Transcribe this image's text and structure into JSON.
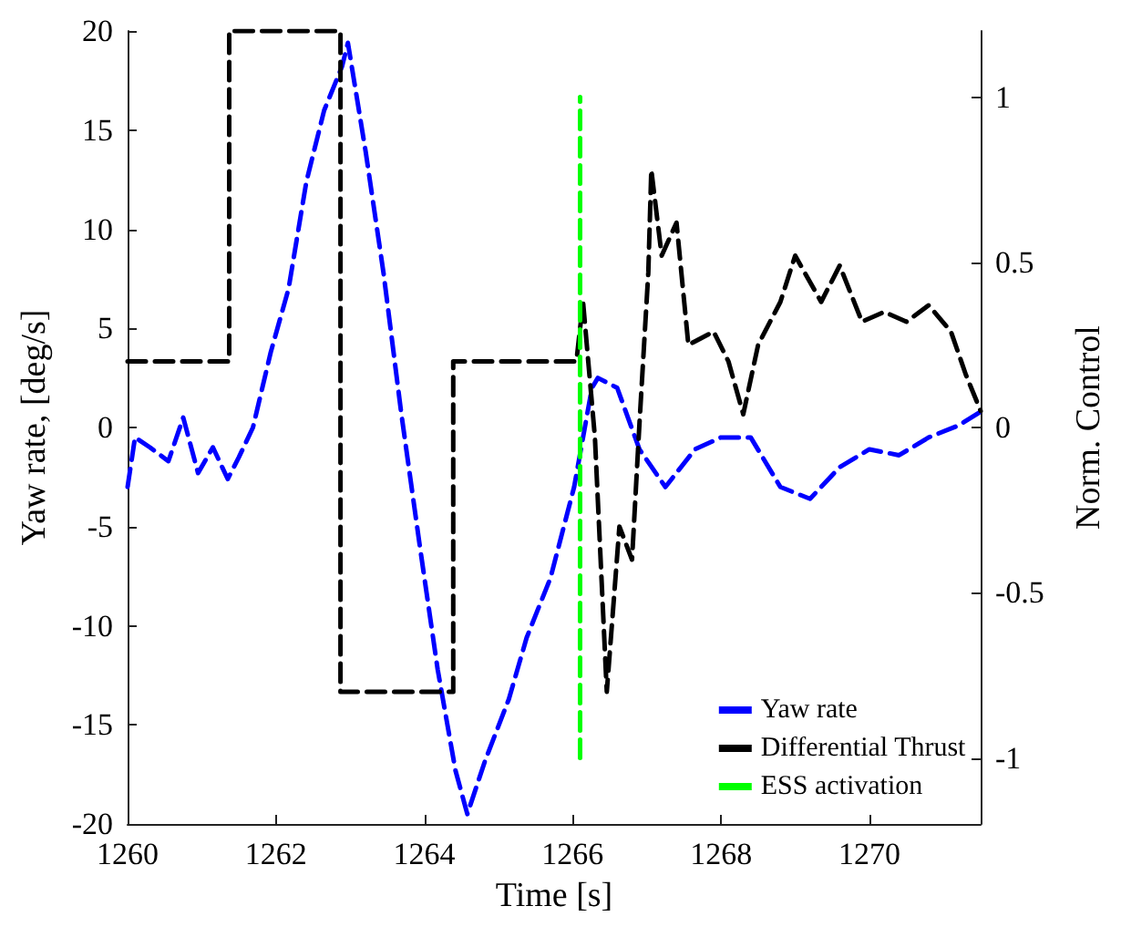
{
  "chart_data": {
    "type": "line",
    "xlabel": "Time [s]",
    "ylabel": "Yaw rate, [deg/s]",
    "y2label": "Norm. Control",
    "xlim": [
      1260,
      1271.5
    ],
    "xticks": [
      1260,
      1262,
      1264,
      1266,
      1268,
      1270
    ],
    "ylim": [
      -20,
      20
    ],
    "yticks": [
      -20,
      -15,
      -10,
      -5,
      0,
      5,
      10,
      15,
      20
    ],
    "y2lim": [
      -1.2,
      1.2
    ],
    "y2ticks": [
      -1,
      -0.5,
      0,
      0.5,
      1
    ],
    "grid": false,
    "legend": "bottom right",
    "marker": "none",
    "line_style": "dashed",
    "series": [
      {
        "name": "Yaw rate",
        "color": "#0000ff",
        "x": [
          1260,
          1260.1,
          1260.3,
          1260.55,
          1260.75,
          1260.95,
          1261.15,
          1261.35,
          1261.5,
          1261.69,
          1261.93,
          1262.17,
          1262.41,
          1262.65,
          1262.89,
          1262.97,
          1263.21,
          1263.45,
          1263.69,
          1263.94,
          1264.18,
          1264.42,
          1264.58,
          1264.82,
          1265.14,
          1265.38,
          1265.7,
          1266.02,
          1266.26,
          1266.34,
          1266.6,
          1266.9,
          1267.25,
          1267.65,
          1268.0,
          1268.4,
          1268.8,
          1269.2,
          1269.6,
          1270.0,
          1270.4,
          1270.8,
          1271.2,
          1271.5
        ],
        "values": [
          -3,
          -0.5,
          -1,
          -1.7,
          0.5,
          -2.3,
          -1,
          -2.6,
          -1.5,
          0,
          3.8,
          7,
          12.4,
          16,
          18.2,
          19.4,
          13.9,
          7.8,
          0.7,
          -6,
          -12.2,
          -17.3,
          -19.5,
          -16.8,
          -13.7,
          -10.6,
          -7.6,
          -3,
          2,
          2.5,
          2,
          -1.1,
          -3,
          -1.1,
          -0.5,
          -0.5,
          -3,
          -3.6,
          -2,
          -1.1,
          -1.4,
          -0.5,
          0.1,
          0.8
        ]
      },
      {
        "name": "Differential Thrust",
        "color": "#000000",
        "axis": "y2",
        "x": [
          1260,
          1261.37,
          1261.37,
          1262.87,
          1262.87,
          1264.39,
          1264.39,
          1266.05,
          1266.14,
          1266.3,
          1266.46,
          1266.63,
          1266.8,
          1266.9,
          1267.02,
          1267.06,
          1267.2,
          1267.4,
          1267.56,
          1267.9,
          1268.1,
          1268.3,
          1268.5,
          1268.8,
          1269.0,
          1269.35,
          1269.6,
          1269.9,
          1270.2,
          1270.5,
          1270.8,
          1271.1,
          1271.3,
          1271.5
        ],
        "values": [
          0.2,
          0.2,
          1.2,
          1.2,
          -0.8,
          -0.8,
          0.2,
          0.2,
          0.38,
          -0.03,
          -0.8,
          -0.3,
          -0.4,
          0.01,
          0.47,
          0.78,
          0.52,
          0.62,
          0.25,
          0.29,
          0.2,
          0.04,
          0.25,
          0.38,
          0.52,
          0.38,
          0.49,
          0.32,
          0.35,
          0.32,
          0.37,
          0.29,
          0.16,
          0.05
        ]
      },
      {
        "name": "ESS activation",
        "color": "#00ff00",
        "axis": "y2",
        "x": [
          1266.1,
          1266.1
        ],
        "values": [
          -1,
          1
        ]
      }
    ]
  }
}
